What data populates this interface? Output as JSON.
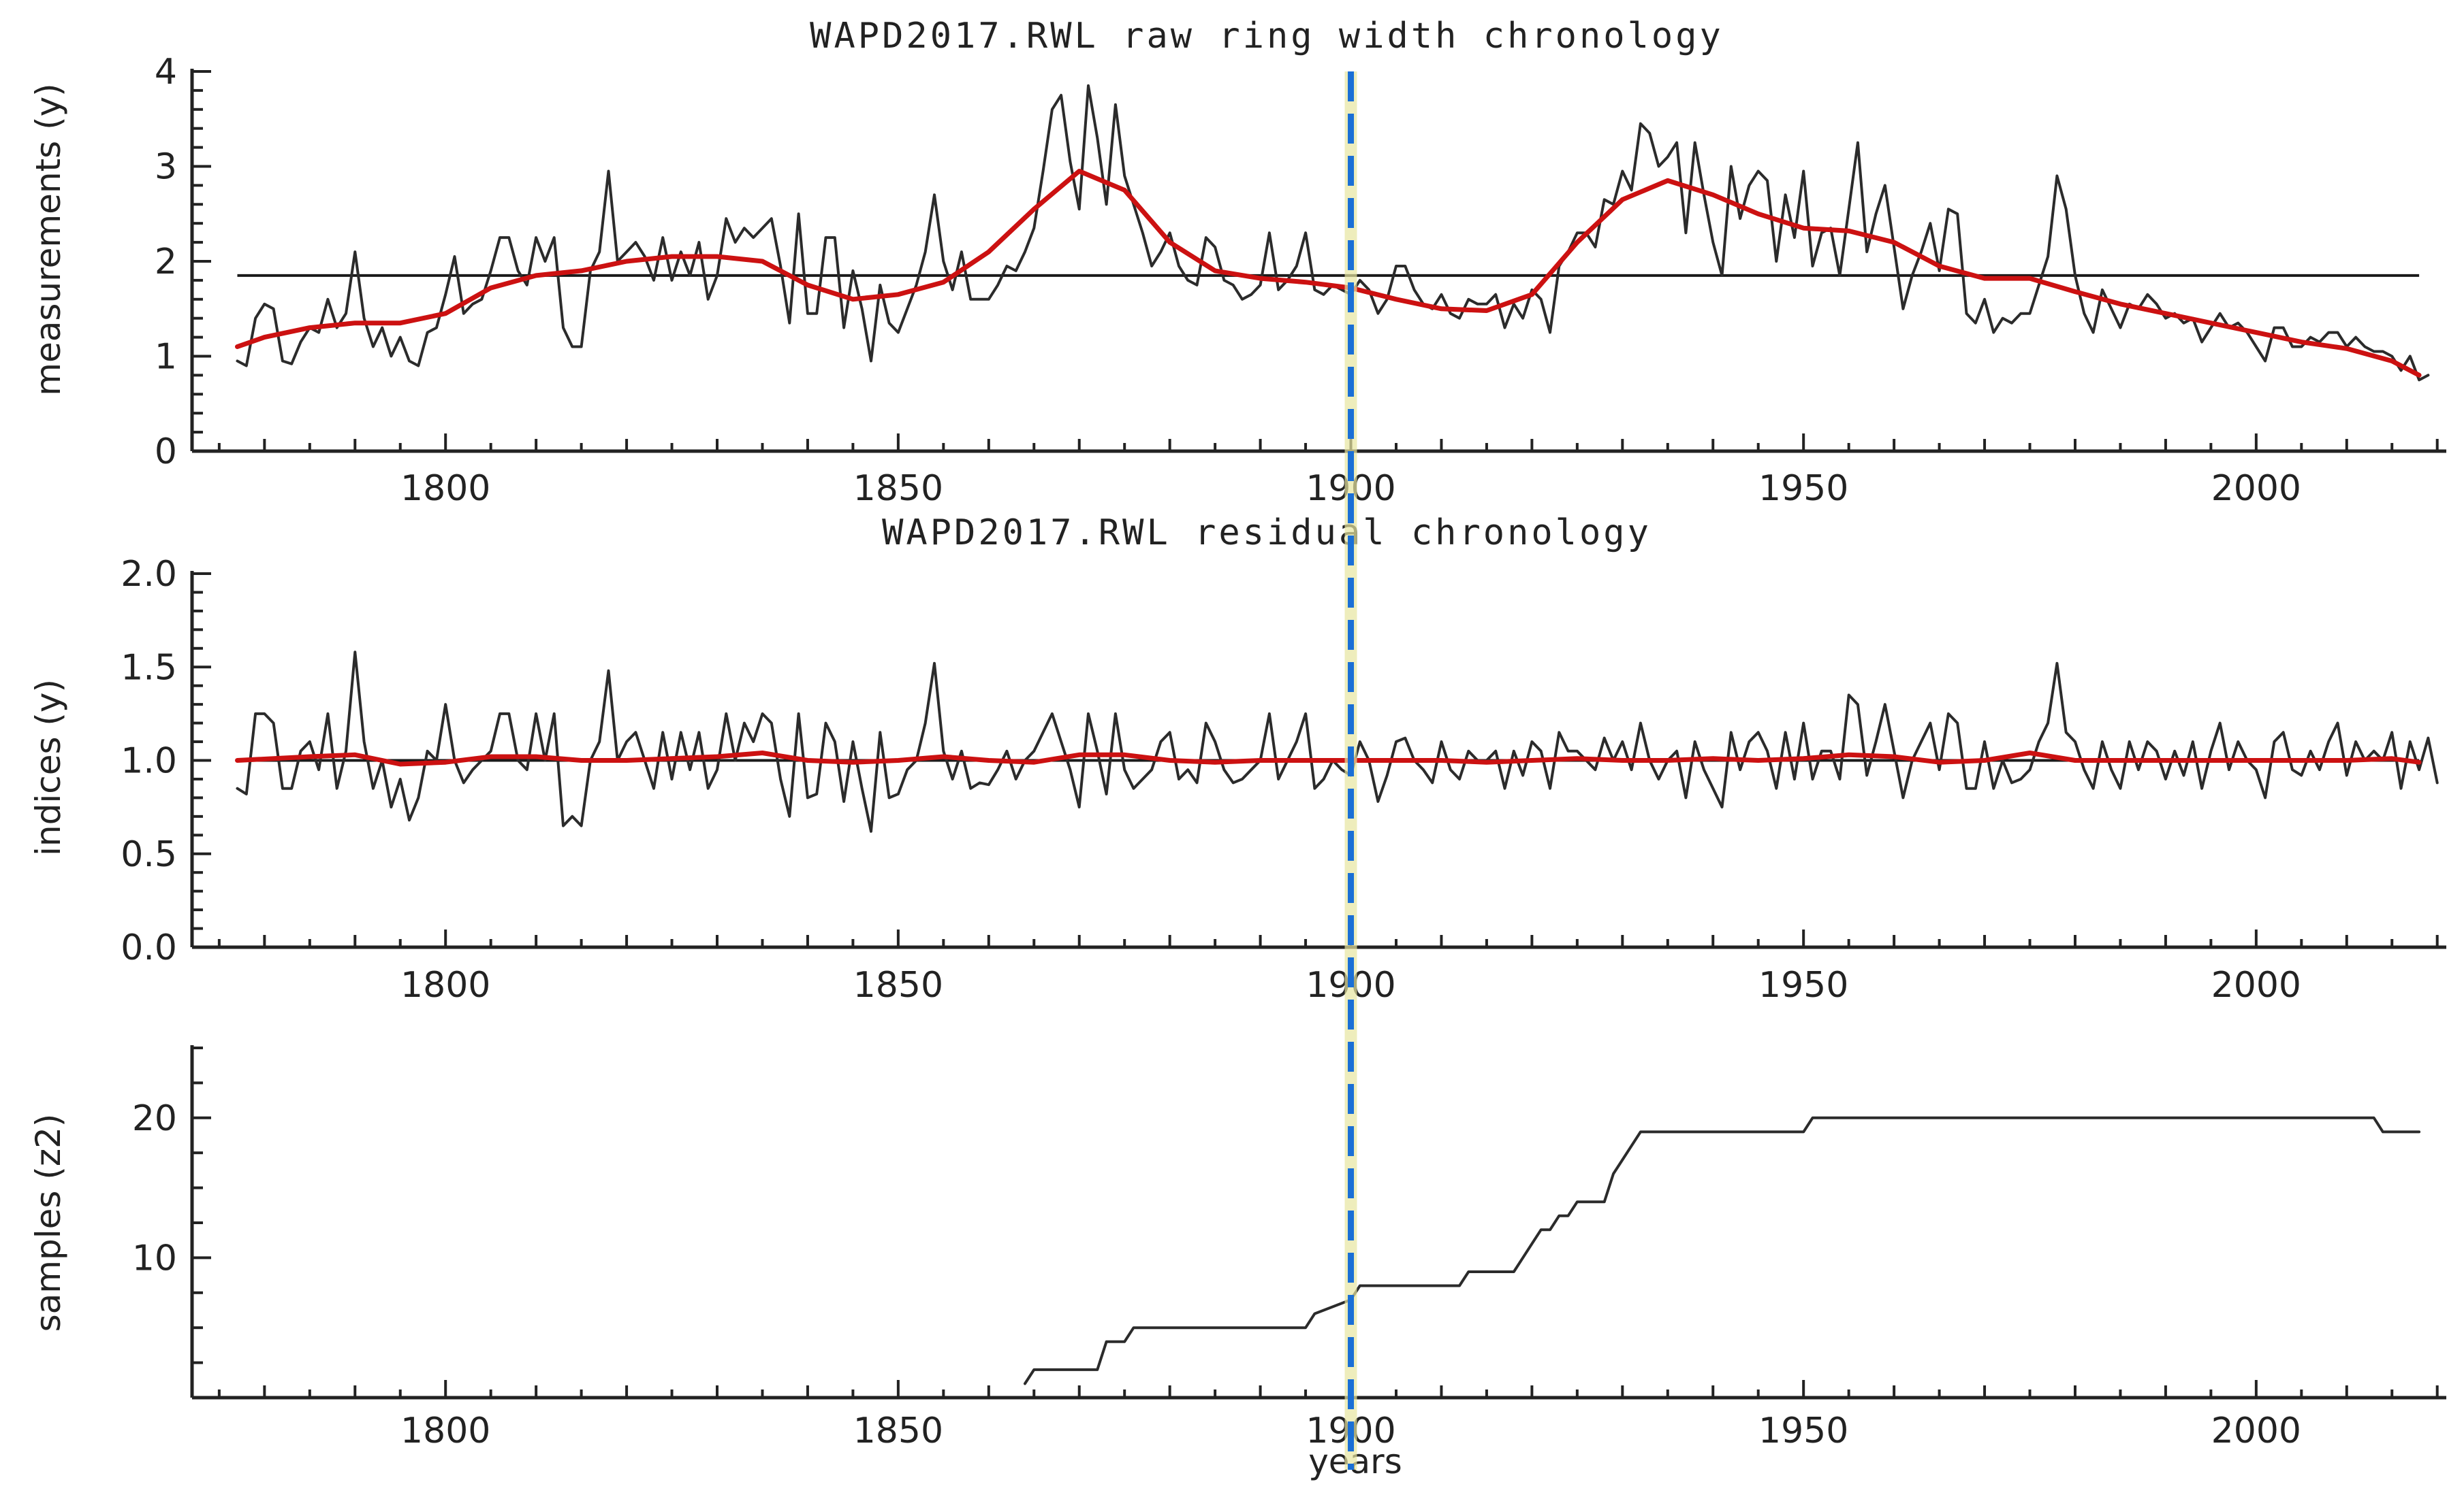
{
  "figure": {
    "xlabel": "years",
    "marker_year": 1900,
    "colors": {
      "raw_series": "#2b2b2b",
      "smooth": "#cc1111",
      "reference": "#1a1a1a",
      "marker": "#1a6fd6",
      "marker_halo": "#e8e6a0"
    }
  },
  "chart_data": [
    {
      "type": "line",
      "title": "WAPD2017.RWL raw ring width chronology",
      "ylabel": "measurements (y)",
      "xlabel": "",
      "xlim": [
        1772,
        2021
      ],
      "ylim": [
        0,
        4
      ],
      "x_ticks": [
        1800,
        1850,
        1900,
        1950,
        2000
      ],
      "y_ticks": [
        0,
        1,
        2,
        3,
        4
      ],
      "y_tick_labels": [
        "0",
        "1",
        "2",
        "3",
        "4"
      ],
      "x_tick_labels": [
        "1800",
        "1850",
        "1900",
        "1950",
        "2000"
      ],
      "reference_line": 1.85,
      "series": [
        {
          "name": "raw ring width",
          "x_start": 1777,
          "values": [
            0.95,
            0.9,
            1.4,
            1.55,
            1.5,
            0.95,
            0.92,
            1.15,
            1.3,
            1.25,
            1.6,
            1.3,
            1.45,
            2.1,
            1.4,
            1.1,
            1.3,
            1.0,
            1.2,
            0.95,
            0.9,
            1.25,
            1.3,
            1.65,
            2.05,
            1.45,
            1.55,
            1.6,
            1.9,
            2.25,
            2.25,
            1.9,
            1.75,
            2.25,
            2.0,
            2.25,
            1.3,
            1.1,
            1.1,
            1.9,
            2.1,
            2.95,
            2.0,
            2.1,
            2.2,
            2.05,
            1.8,
            2.25,
            1.8,
            2.1,
            1.85,
            2.2,
            1.6,
            1.85,
            2.45,
            2.2,
            2.35,
            2.25,
            2.35,
            2.45,
            1.95,
            1.35,
            2.5,
            1.45,
            1.45,
            2.25,
            2.25,
            1.3,
            1.9,
            1.5,
            0.95,
            1.75,
            1.35,
            1.25,
            1.5,
            1.75,
            2.1,
            2.7,
            2.0,
            1.7,
            2.1,
            1.6,
            1.6,
            1.6,
            1.75,
            1.95,
            1.9,
            2.1,
            2.35,
            2.95,
            3.6,
            3.75,
            3.05,
            2.55,
            3.85,
            3.3,
            2.6,
            3.65,
            2.9,
            2.6,
            2.3,
            1.95,
            2.1,
            2.3,
            1.95,
            1.8,
            1.75,
            2.25,
            2.15,
            1.8,
            1.75,
            1.6,
            1.65,
            1.75,
            2.3,
            1.7,
            1.8,
            1.95,
            2.3,
            1.7,
            1.65,
            1.75,
            1.7,
            1.65,
            1.8,
            1.7,
            1.45,
            1.6,
            1.95,
            1.95,
            1.7,
            1.55,
            1.5,
            1.65,
            1.45,
            1.4,
            1.6,
            1.55,
            1.55,
            1.65,
            1.3,
            1.55,
            1.4,
            1.7,
            1.6,
            1.25,
            1.95,
            2.1,
            2.3,
            2.3,
            2.15,
            2.65,
            2.6,
            2.95,
            2.75,
            3.45,
            3.35,
            3.0,
            3.1,
            3.25,
            2.3,
            3.25,
            2.7,
            2.2,
            1.85,
            3.0,
            2.45,
            2.8,
            2.95,
            2.85,
            2.0,
            2.7,
            2.25,
            2.95,
            1.95,
            2.3,
            2.35,
            1.85,
            2.55,
            3.25,
            2.1,
            2.5,
            2.8,
            2.15,
            1.5,
            1.85,
            2.1,
            2.4,
            1.9,
            2.55,
            2.5,
            1.45,
            1.35,
            1.6,
            1.25,
            1.4,
            1.35,
            1.45,
            1.45,
            1.75,
            2.05,
            2.9,
            2.55,
            1.85,
            1.45,
            1.25,
            1.7,
            1.5,
            1.3,
            1.55,
            1.5,
            1.65,
            1.55,
            1.4,
            1.45,
            1.35,
            1.4,
            1.15,
            1.3,
            1.45,
            1.3,
            1.35,
            1.25,
            1.1,
            0.95,
            1.3,
            1.3,
            1.1,
            1.1,
            1.2,
            1.15,
            1.25,
            1.25,
            1.1,
            1.2,
            1.1,
            1.05,
            1.05,
            1.0,
            0.85,
            1.0,
            0.75,
            0.8
          ]
        },
        {
          "name": "smoothing spline",
          "x": [
            1777,
            1780,
            1785,
            1790,
            1795,
            1800,
            1805,
            1810,
            1815,
            1820,
            1825,
            1830,
            1835,
            1840,
            1845,
            1850,
            1855,
            1860,
            1865,
            1870,
            1875,
            1880,
            1885,
            1890,
            1895,
            1900,
            1905,
            1910,
            1915,
            1920,
            1925,
            1930,
            1935,
            1940,
            1945,
            1950,
            1955,
            1960,
            1965,
            1970,
            1975,
            1980,
            1985,
            1990,
            1995,
            2000,
            2005,
            2010,
            2015,
            2018
          ],
          "values": [
            1.1,
            1.2,
            1.3,
            1.35,
            1.35,
            1.45,
            1.72,
            1.85,
            1.9,
            2.0,
            2.05,
            2.05,
            2.0,
            1.75,
            1.6,
            1.65,
            1.78,
            2.1,
            2.55,
            2.95,
            2.75,
            2.2,
            1.9,
            1.82,
            1.78,
            1.72,
            1.6,
            1.5,
            1.48,
            1.65,
            2.2,
            2.65,
            2.85,
            2.7,
            2.5,
            2.35,
            2.32,
            2.2,
            1.95,
            1.82,
            1.82,
            1.68,
            1.55,
            1.45,
            1.35,
            1.25,
            1.15,
            1.08,
            0.95,
            0.8
          ]
        }
      ]
    },
    {
      "type": "line",
      "title": "WAPD2017.RWL residual chronology",
      "ylabel": "indices (y)",
      "xlabel": "",
      "xlim": [
        1772,
        2021
      ],
      "ylim": [
        0,
        2
      ],
      "x_ticks": [
        1800,
        1850,
        1900,
        1950,
        2000
      ],
      "y_ticks": [
        0,
        0.5,
        1,
        1.5,
        2
      ],
      "y_tick_labels": [
        "0.0",
        "0.5",
        "1.0",
        "1.5",
        "2.0"
      ],
      "x_tick_labels": [
        "1800",
        "1850",
        "1900",
        "1950",
        "2000"
      ],
      "reference_line": 1.0,
      "series": [
        {
          "name": "residual indices",
          "x_start": 1777,
          "values": [
            0.85,
            0.82,
            1.25,
            1.25,
            1.2,
            0.85,
            0.85,
            1.05,
            1.1,
            0.95,
            1.25,
            0.85,
            1.05,
            1.58,
            1.1,
            0.85,
            1.0,
            0.75,
            0.9,
            0.68,
            0.8,
            1.05,
            1.0,
            1.3,
            1.0,
            0.88,
            0.95,
            1.0,
            1.05,
            1.25,
            1.25,
            1.0,
            0.95,
            1.25,
            1.0,
            1.25,
            0.65,
            0.7,
            0.65,
            1.0,
            1.1,
            1.48,
            1.0,
            1.1,
            1.15,
            1.0,
            0.85,
            1.15,
            0.9,
            1.15,
            0.95,
            1.15,
            0.85,
            0.95,
            1.25,
            1.0,
            1.2,
            1.1,
            1.25,
            1.2,
            0.9,
            0.7,
            1.25,
            0.8,
            0.82,
            1.2,
            1.1,
            0.78,
            1.1,
            0.85,
            0.62,
            1.15,
            0.8,
            0.82,
            0.95,
            1.0,
            1.2,
            1.52,
            1.05,
            0.9,
            1.05,
            0.85,
            0.88,
            0.87,
            0.95,
            1.05,
            0.9,
            1.0,
            1.05,
            1.15,
            1.25,
            1.1,
            0.95,
            0.75,
            1.25,
            1.05,
            0.82,
            1.25,
            0.95,
            0.85,
            0.9,
            0.95,
            1.1,
            1.15,
            0.9,
            0.95,
            0.88,
            1.2,
            1.1,
            0.95,
            0.88,
            0.9,
            0.95,
            1.0,
            1.25,
            0.9,
            1.0,
            1.1,
            1.25,
            0.85,
            0.9,
            1.0,
            0.95,
            0.92,
            1.1,
            1.0,
            0.78,
            0.92,
            1.1,
            1.12,
            1.0,
            0.95,
            0.88,
            1.1,
            0.95,
            0.9,
            1.05,
            1.0,
            1.0,
            1.05,
            0.85,
            1.05,
            0.92,
            1.1,
            1.05,
            0.85,
            1.15,
            1.05,
            1.05,
            1.0,
            0.95,
            1.12,
            1.0,
            1.1,
            0.95,
            1.2,
            1.0,
            0.9,
            1.0,
            1.05,
            0.8,
            1.1,
            0.95,
            0.85,
            0.75,
            1.15,
            0.95,
            1.1,
            1.15,
            1.05,
            0.85,
            1.15,
            0.9,
            1.2,
            0.9,
            1.05,
            1.05,
            0.9,
            1.35,
            1.3,
            0.92,
            1.1,
            1.3,
            1.05,
            0.8,
            1.0,
            1.1,
            1.2,
            0.95,
            1.25,
            1.2,
            0.85,
            0.85,
            1.1,
            0.85,
            1.0,
            0.88,
            0.9,
            0.95,
            1.1,
            1.2,
            1.52,
            1.15,
            1.1,
            0.95,
            0.85,
            1.1,
            0.95,
            0.85,
            1.1,
            0.95,
            1.1,
            1.05,
            0.9,
            1.05,
            0.92,
            1.1,
            0.85,
            1.05,
            1.2,
            0.95,
            1.1,
            1.0,
            0.95,
            0.8,
            1.1,
            1.15,
            0.95,
            0.92,
            1.05,
            0.95,
            1.1,
            1.2,
            0.92,
            1.1,
            1.0,
            1.05,
            1.0,
            1.15,
            0.85,
            1.1,
            0.95,
            1.12,
            0.88
          ]
        },
        {
          "name": "smoothing spline",
          "x": [
            1777,
            1785,
            1790,
            1795,
            1800,
            1805,
            1810,
            1815,
            1820,
            1825,
            1830,
            1835,
            1840,
            1845,
            1850,
            1855,
            1860,
            1865,
            1870,
            1875,
            1880,
            1885,
            1890,
            1895,
            1900,
            1905,
            1910,
            1915,
            1920,
            1925,
            1930,
            1935,
            1940,
            1945,
            1950,
            1955,
            1960,
            1965,
            1970,
            1975,
            1980,
            1985,
            1990,
            1995,
            2000,
            2005,
            2010,
            2015,
            2018
          ],
          "values": [
            1.0,
            1.02,
            1.03,
            0.98,
            0.99,
            1.02,
            1.02,
            1.0,
            1.0,
            1.01,
            1.02,
            1.04,
            1.0,
            0.99,
            1.0,
            1.02,
            1.0,
            0.99,
            1.03,
            1.03,
            1.0,
            0.99,
            1.0,
            1.0,
            1.0,
            1.0,
            1.0,
            0.99,
            1.0,
            1.01,
            1.0,
            1.0,
            1.01,
            1.0,
            1.01,
            1.03,
            1.02,
            0.99,
            1.0,
            1.04,
            1.0,
            1.0,
            1.0,
            1.0,
            1.0,
            1.0,
            1.0,
            1.01,
            0.99
          ]
        }
      ]
    },
    {
      "type": "line",
      "title": "",
      "ylabel": "samples (z2)",
      "xlabel": "years",
      "xlim": [
        1772,
        2021
      ],
      "ylim": [
        0,
        25
      ],
      "x_ticks": [
        1800,
        1850,
        1900,
        1950,
        2000
      ],
      "y_ticks": [
        10,
        20
      ],
      "y_tick_labels": [
        "10",
        "20"
      ],
      "x_tick_labels": [
        "1800",
        "1850",
        "1900",
        "1950",
        "2000"
      ],
      "series": [
        {
          "name": "sample depth",
          "step": true,
          "x": [
            1864,
            1865,
            1872,
            1873,
            1875,
            1876,
            1889,
            1890,
            1895,
            1896,
            1900,
            1901,
            1912,
            1913,
            1918,
            1919,
            1920,
            1921,
            1922,
            1923,
            1924,
            1925,
            1928,
            1929,
            1930,
            1931,
            1932,
            1950,
            1951,
            2013,
            2014,
            2018
          ],
          "values": [
            1,
            2,
            2,
            4,
            4,
            5,
            5,
            5,
            5,
            6,
            7,
            8,
            8,
            9,
            9,
            10,
            11,
            12,
            12,
            13,
            13,
            14,
            14,
            16,
            17,
            18,
            19,
            19,
            20,
            20,
            19,
            19
          ]
        }
      ]
    }
  ]
}
